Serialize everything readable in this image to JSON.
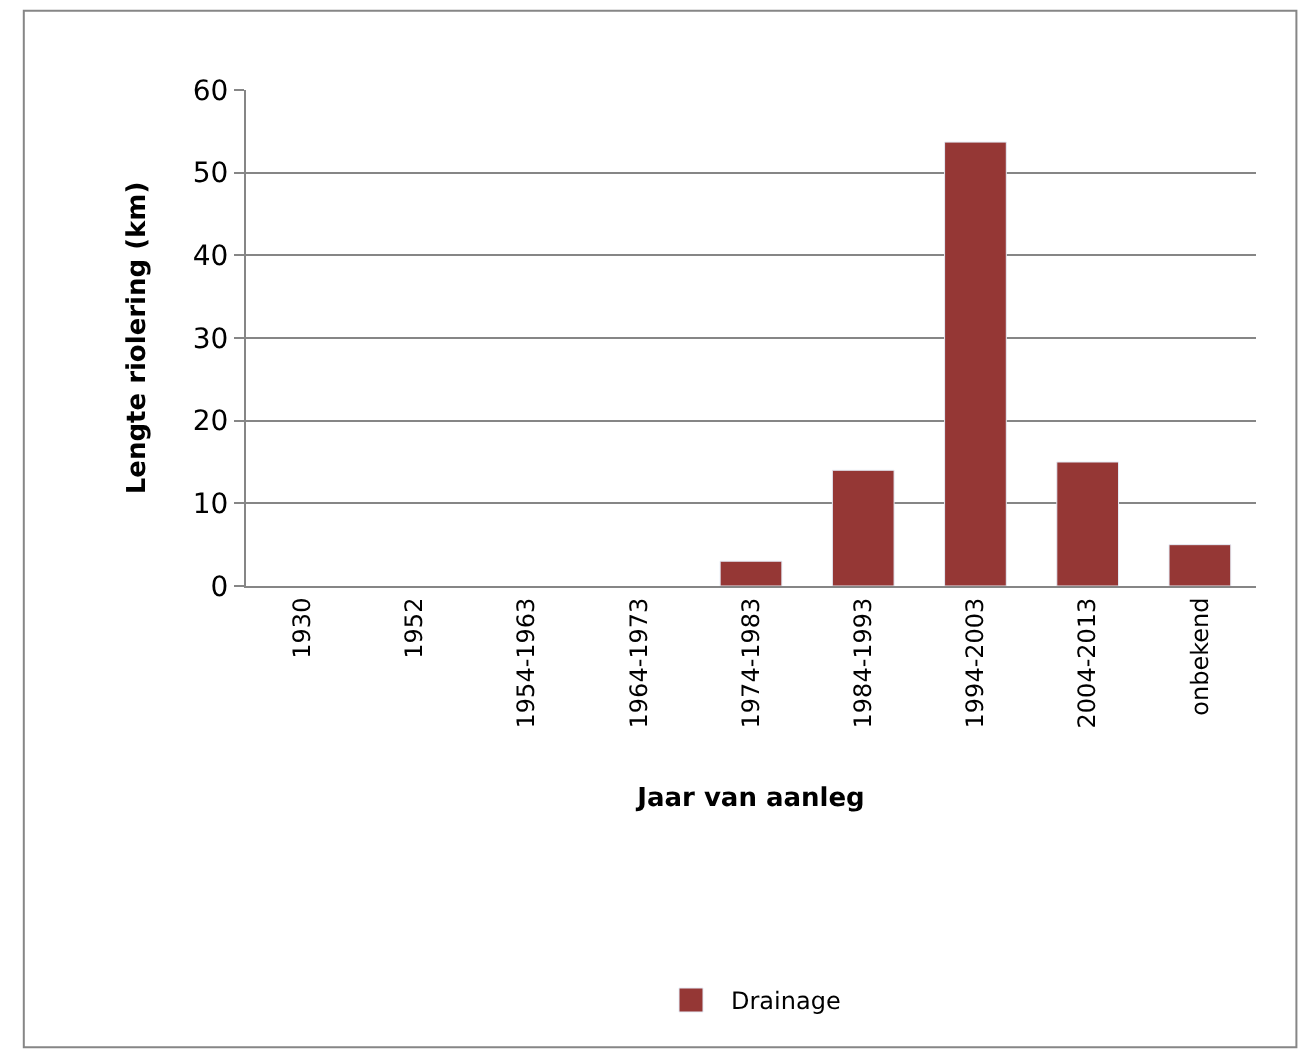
{
  "chart_data": {
    "type": "bar",
    "xlabel": "Jaar van aanleg",
    "ylabel": "Lengte riolering (km)",
    "categories": [
      "1930",
      "1952",
      "1954-1963",
      "1964-1973",
      "1974-1983",
      "1984-1993",
      "1994-2003",
      "2004-2013",
      "onbekend"
    ],
    "series": [
      {
        "name": "Drainage",
        "color": "#953735",
        "values": [
          null,
          null,
          null,
          null,
          3,
          14,
          53.7,
          15,
          5
        ]
      }
    ],
    "ylim": [
      0,
      60
    ],
    "yticks": [
      0,
      10,
      20,
      30,
      40,
      50,
      60
    ],
    "grid": "y",
    "legend": "bottom"
  }
}
